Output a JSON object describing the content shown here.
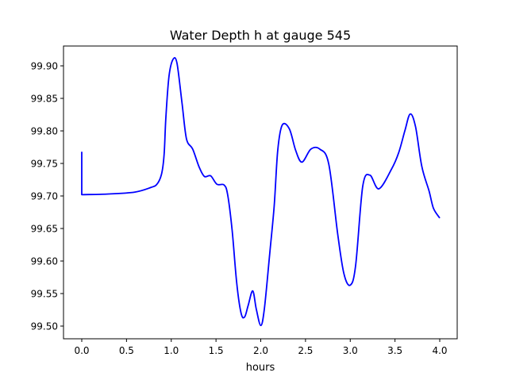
{
  "chart_data": {
    "type": "line",
    "title": "Water Depth h at gauge 545",
    "xlabel": "hours",
    "ylabel": "",
    "xlim": [
      -0.204,
      4.195
    ],
    "ylim": [
      99.4805,
      99.9305
    ],
    "xticks": [
      0.0,
      0.5,
      1.0,
      1.5,
      2.0,
      2.5,
      3.0,
      3.5,
      4.0
    ],
    "xtick_labels": [
      "0.0",
      "0.5",
      "1.0",
      "1.5",
      "2.0",
      "2.5",
      "3.0",
      "3.5",
      "4.0"
    ],
    "yticks": [
      99.5,
      99.55,
      99.6,
      99.65,
      99.7,
      99.75,
      99.8,
      99.85,
      99.9
    ],
    "ytick_labels": [
      "99.50",
      "99.55",
      "99.60",
      "99.65",
      "99.70",
      "99.75",
      "99.80",
      "99.85",
      "99.90"
    ],
    "grid": false,
    "series": [
      {
        "name": "h",
        "color": "#0000ff",
        "x": [
          0.0,
          0.0,
          0.3,
          0.594,
          0.77,
          0.84,
          0.89,
          0.92,
          0.94,
          0.976,
          1.02,
          1.064,
          1.12,
          1.17,
          1.24,
          1.31,
          1.37,
          1.44,
          1.51,
          1.59,
          1.63,
          1.68,
          1.73,
          1.78,
          1.82,
          1.86,
          1.91,
          1.95,
          2.0,
          2.04,
          2.1,
          2.15,
          2.19,
          2.24,
          2.32,
          2.39,
          2.46,
          2.56,
          2.66,
          2.76,
          2.86,
          2.93,
          3.0,
          3.06,
          3.14,
          3.22,
          3.32,
          3.46,
          3.54,
          3.61,
          3.67,
          3.73,
          3.8,
          3.88,
          3.93,
          4.0
        ],
        "y": [
          99.768,
          99.702,
          99.703,
          99.706,
          99.713,
          99.718,
          99.733,
          99.763,
          99.821,
          99.885,
          99.91,
          99.904,
          99.843,
          99.788,
          99.772,
          99.745,
          99.73,
          99.731,
          99.718,
          99.717,
          99.702,
          99.648,
          99.568,
          99.52,
          99.514,
          99.532,
          99.554,
          99.526,
          99.501,
          99.526,
          99.611,
          99.684,
          99.77,
          99.809,
          99.803,
          99.77,
          99.752,
          99.772,
          99.772,
          99.749,
          99.641,
          99.58,
          99.563,
          99.593,
          99.715,
          99.732,
          99.711,
          99.741,
          99.766,
          99.8,
          99.826,
          99.806,
          99.745,
          99.708,
          99.681,
          99.666
        ]
      }
    ]
  }
}
